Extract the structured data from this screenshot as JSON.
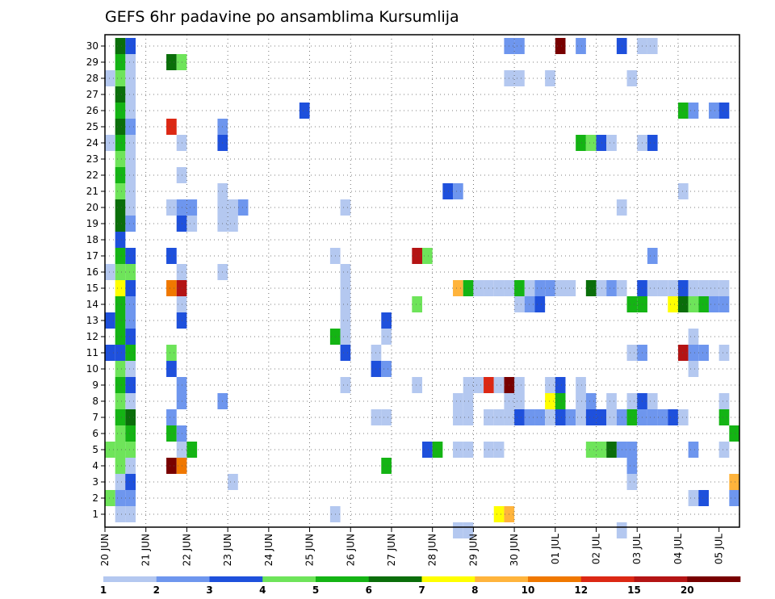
{
  "chart_data": {
    "type": "heatmap",
    "title": "GEFS 6hr padavine po ansamblima Kursumlija",
    "xlabel": "",
    "ylabel": "",
    "x_ticks": [
      "20 JUN",
      "21 JUN",
      "22 JUN",
      "23 JUN",
      "24 JUN",
      "25 JUN",
      "26 JUN",
      "27 JUN",
      "28 JUN",
      "29 JUN",
      "30 JUN",
      "01 JUL",
      "02 JUL",
      "03 JUL",
      "04 JUL",
      "05 JUL"
    ],
    "y_ticks": [
      "1",
      "2",
      "3",
      "4",
      "5",
      "6",
      "7",
      "8",
      "9",
      "10",
      "11",
      "12",
      "13",
      "14",
      "15",
      "16",
      "17",
      "18",
      "19",
      "20",
      "21",
      "22",
      "23",
      "24",
      "25",
      "26",
      "27",
      "28",
      "29",
      "30"
    ],
    "x_steps": 60,
    "step_hours": 6,
    "members": 30,
    "grid": true,
    "colorbar": {
      "levels": [
        "1",
        "2",
        "3",
        "4",
        "5",
        "6",
        "7",
        "8",
        "10",
        "12",
        "15",
        "20"
      ],
      "colors": [
        "#b4c8f0",
        "#6e96ee",
        "#1e50dc",
        "#6ee45a",
        "#14b414",
        "#0a6e0a",
        "#ffff00",
        "#ffb43c",
        "#f07800",
        "#dc2814",
        "#b41414",
        "#780000"
      ]
    },
    "cells": [
      [
        1,
        1,
        1
      ],
      [
        2,
        1,
        2
      ],
      [
        3,
        1,
        1
      ],
      [
        3,
        2,
        3
      ],
      [
        4,
        1,
        4
      ],
      [
        5,
        1,
        4
      ],
      [
        6,
        1,
        4
      ],
      [
        7,
        1,
        5
      ],
      [
        8,
        1,
        4
      ],
      [
        9,
        1,
        5
      ],
      [
        10,
        1,
        4
      ],
      [
        11,
        1,
        3
      ],
      [
        12,
        1,
        5
      ],
      [
        13,
        1,
        5
      ],
      [
        14,
        1,
        5
      ],
      [
        15,
        1,
        7
      ],
      [
        16,
        1,
        4
      ],
      [
        17,
        1,
        5
      ],
      [
        18,
        1,
        3
      ],
      [
        19,
        1,
        6
      ],
      [
        20,
        1,
        6
      ],
      [
        21,
        1,
        4
      ],
      [
        22,
        1,
        5
      ],
      [
        23,
        1,
        4
      ],
      [
        24,
        1,
        5
      ],
      [
        25,
        1,
        6
      ],
      [
        26,
        1,
        5
      ],
      [
        27,
        1,
        6
      ],
      [
        28,
        1,
        4
      ],
      [
        29,
        1,
        5
      ],
      [
        30,
        1,
        6
      ],
      [
        2,
        0,
        4
      ],
      [
        5,
        0,
        4
      ],
      [
        11,
        0,
        3
      ],
      [
        13,
        0,
        3
      ],
      [
        16,
        0,
        1
      ],
      [
        24,
        0,
        1
      ],
      [
        28,
        0,
        1
      ],
      [
        1,
        2,
        1
      ],
      [
        2,
        2,
        2
      ],
      [
        3,
        2,
        3
      ],
      [
        4,
        2,
        1
      ],
      [
        5,
        2,
        4
      ],
      [
        6,
        2,
        5
      ],
      [
        7,
        2,
        6
      ],
      [
        8,
        2,
        1
      ],
      [
        9,
        2,
        3
      ],
      [
        10,
        2,
        1
      ],
      [
        11,
        2,
        5
      ],
      [
        12,
        2,
        3
      ],
      [
        13,
        2,
        2
      ],
      [
        14,
        2,
        2
      ],
      [
        15,
        2,
        3
      ],
      [
        16,
        2,
        4
      ],
      [
        17,
        2,
        3
      ],
      [
        19,
        2,
        2
      ],
      [
        20,
        2,
        1
      ],
      [
        21,
        2,
        1
      ],
      [
        22,
        2,
        1
      ],
      [
        23,
        2,
        1
      ],
      [
        24,
        2,
        1
      ],
      [
        25,
        2,
        2
      ],
      [
        26,
        2,
        1
      ],
      [
        27,
        2,
        1
      ],
      [
        28,
        2,
        1
      ],
      [
        29,
        2,
        1
      ],
      [
        30,
        2,
        3
      ],
      [
        29,
        6,
        6
      ],
      [
        29,
        7,
        4
      ],
      [
        25,
        6,
        10
      ],
      [
        24,
        7,
        1
      ],
      [
        22,
        7,
        1
      ],
      [
        20,
        6,
        1
      ],
      [
        20,
        7,
        2
      ],
      [
        20,
        8,
        2
      ],
      [
        19,
        7,
        3
      ],
      [
        19,
        8,
        1
      ],
      [
        16,
        7,
        1
      ],
      [
        17,
        6,
        3
      ],
      [
        15,
        6,
        9
      ],
      [
        15,
        7,
        11
      ],
      [
        14,
        7,
        1
      ],
      [
        13,
        7,
        3
      ],
      [
        11,
        6,
        4
      ],
      [
        10,
        6,
        3
      ],
      [
        9,
        7,
        2
      ],
      [
        8,
        7,
        2
      ],
      [
        7,
        6,
        2
      ],
      [
        6,
        6,
        5
      ],
      [
        6,
        7,
        2
      ],
      [
        5,
        7,
        1
      ],
      [
        5,
        8,
        5
      ],
      [
        4,
        6,
        12
      ],
      [
        4,
        7,
        9
      ],
      [
        25,
        11,
        2
      ],
      [
        24,
        11,
        3
      ],
      [
        21,
        11,
        1
      ],
      [
        20,
        11,
        1
      ],
      [
        20,
        12,
        1
      ],
      [
        20,
        13,
        2
      ],
      [
        19,
        11,
        1
      ],
      [
        19,
        12,
        1
      ],
      [
        16,
        11,
        1
      ],
      [
        8,
        11,
        2
      ],
      [
        3,
        12,
        1
      ],
      [
        26,
        19,
        3
      ],
      [
        17,
        22,
        1
      ],
      [
        16,
        23,
        1
      ],
      [
        15,
        23,
        1
      ],
      [
        14,
        23,
        1
      ],
      [
        13,
        23,
        1
      ],
      [
        9,
        23,
        1
      ],
      [
        12,
        22,
        5
      ],
      [
        12,
        23,
        1
      ],
      [
        11,
        23,
        3
      ],
      [
        20,
        23,
        1
      ],
      [
        1,
        22,
        1
      ],
      [
        4,
        27,
        5
      ],
      [
        10,
        26,
        3
      ],
      [
        10,
        27,
        2
      ],
      [
        11,
        26,
        1
      ],
      [
        13,
        27,
        3
      ],
      [
        7,
        26,
        1
      ],
      [
        7,
        27,
        1
      ],
      [
        9,
        30,
        1
      ],
      [
        5,
        31,
        3
      ],
      [
        5,
        32,
        5
      ],
      [
        5,
        34,
        1
      ],
      [
        5,
        35,
        1
      ],
      [
        7,
        34,
        1
      ],
      [
        7,
        35,
        1
      ],
      [
        8,
        34,
        1
      ],
      [
        8,
        35,
        1
      ],
      [
        9,
        35,
        1
      ],
      [
        9,
        36,
        1
      ],
      [
        9,
        37,
        10
      ],
      [
        21,
        33,
        3
      ],
      [
        21,
        34,
        2
      ],
      [
        17,
        30,
        11
      ],
      [
        17,
        31,
        4
      ],
      [
        15,
        34,
        8
      ],
      [
        15,
        35,
        5
      ],
      [
        15,
        36,
        1
      ],
      [
        15,
        37,
        1
      ],
      [
        15,
        38,
        1
      ],
      [
        15,
        39,
        1
      ],
      [
        15,
        40,
        5
      ],
      [
        14,
        30,
        4
      ],
      [
        1,
        38,
        7
      ],
      [
        12,
        27,
        1
      ],
      [
        30,
        39,
        2
      ],
      [
        30,
        40,
        2
      ],
      [
        30,
        44,
        12
      ],
      [
        30,
        46,
        2
      ],
      [
        30,
        50,
        3
      ],
      [
        30,
        52,
        1
      ],
      [
        30,
        53,
        1
      ],
      [
        28,
        39,
        1
      ],
      [
        28,
        40,
        1
      ],
      [
        28,
        43,
        1
      ],
      [
        28,
        51,
        1
      ],
      [
        26,
        56,
        5
      ],
      [
        26,
        57,
        2
      ],
      [
        26,
        59,
        2
      ],
      [
        26,
        60,
        3
      ],
      [
        24,
        46,
        5
      ],
      [
        24,
        47,
        4
      ],
      [
        24,
        48,
        3
      ],
      [
        24,
        49,
        1
      ],
      [
        24,
        52,
        1
      ],
      [
        24,
        53,
        3
      ],
      [
        20,
        50,
        1
      ],
      [
        21,
        56,
        1
      ],
      [
        17,
        53,
        2
      ],
      [
        15,
        48,
        1
      ],
      [
        15,
        49,
        2
      ],
      [
        15,
        52,
        3
      ],
      [
        15,
        54,
        1
      ],
      [
        15,
        55,
        1
      ],
      [
        15,
        56,
        3
      ],
      [
        15,
        57,
        1
      ],
      [
        15,
        58,
        1
      ],
      [
        15,
        59,
        1
      ],
      [
        15,
        60,
        1
      ],
      [
        15,
        41,
        1
      ],
      [
        15,
        42,
        2
      ],
      [
        15,
        43,
        2
      ],
      [
        15,
        44,
        1
      ],
      [
        15,
        45,
        1
      ],
      [
        15,
        50,
        1
      ],
      [
        15,
        53,
        1
      ],
      [
        15,
        47,
        6
      ],
      [
        14,
        40,
        1
      ],
      [
        14,
        41,
        2
      ],
      [
        14,
        42,
        3
      ],
      [
        14,
        51,
        5
      ],
      [
        14,
        52,
        5
      ],
      [
        14,
        55,
        7
      ],
      [
        14,
        56,
        6
      ],
      [
        14,
        57,
        4
      ],
      [
        14,
        58,
        5
      ],
      [
        14,
        59,
        2
      ],
      [
        14,
        60,
        2
      ],
      [
        12,
        57,
        1
      ],
      [
        11,
        51,
        1
      ],
      [
        11,
        52,
        2
      ],
      [
        11,
        56,
        11
      ],
      [
        11,
        57,
        2
      ],
      [
        11,
        58,
        2
      ],
      [
        11,
        60,
        1
      ],
      [
        10,
        57,
        1
      ],
      [
        9,
        40,
        1
      ],
      [
        9,
        43,
        1
      ],
      [
        9,
        44,
        3
      ],
      [
        9,
        46,
        1
      ],
      [
        9,
        39,
        12
      ],
      [
        9,
        38,
        1
      ],
      [
        8,
        39,
        1
      ],
      [
        8,
        40,
        1
      ],
      [
        8,
        43,
        7
      ],
      [
        8,
        44,
        5
      ],
      [
        8,
        46,
        1
      ],
      [
        8,
        47,
        2
      ],
      [
        8,
        49,
        1
      ],
      [
        8,
        51,
        1
      ],
      [
        8,
        52,
        3
      ],
      [
        8,
        53,
        1
      ],
      [
        8,
        60,
        1
      ],
      [
        7,
        38,
        1
      ],
      [
        7,
        37,
        1
      ],
      [
        7,
        39,
        1
      ],
      [
        7,
        40,
        3
      ],
      [
        7,
        41,
        2
      ],
      [
        7,
        42,
        2
      ],
      [
        7,
        43,
        1
      ],
      [
        7,
        44,
        3
      ],
      [
        7,
        45,
        2
      ],
      [
        7,
        46,
        1
      ],
      [
        7,
        47,
        3
      ],
      [
        7,
        48,
        3
      ],
      [
        7,
        49,
        1
      ],
      [
        7,
        50,
        2
      ],
      [
        7,
        51,
        5
      ],
      [
        7,
        52,
        2
      ],
      [
        7,
        53,
        2
      ],
      [
        7,
        54,
        2
      ],
      [
        7,
        55,
        3
      ],
      [
        7,
        56,
        1
      ],
      [
        7,
        60,
        5
      ],
      [
        6,
        61,
        5
      ],
      [
        5,
        37,
        1
      ],
      [
        5,
        38,
        1
      ],
      [
        5,
        47,
        4
      ],
      [
        5,
        48,
        4
      ],
      [
        5,
        49,
        6
      ],
      [
        5,
        50,
        2
      ],
      [
        5,
        51,
        2
      ],
      [
        5,
        57,
        2
      ],
      [
        5,
        60,
        1
      ],
      [
        4,
        51,
        2
      ],
      [
        3,
        51,
        1
      ],
      [
        3,
        61,
        8
      ],
      [
        2,
        57,
        1
      ],
      [
        2,
        58,
        3
      ],
      [
        2,
        61,
        2
      ],
      [
        1,
        39,
        8
      ],
      [
        0,
        34,
        1
      ],
      [
        0,
        35,
        1
      ],
      [
        0,
        50,
        1
      ]
    ]
  }
}
